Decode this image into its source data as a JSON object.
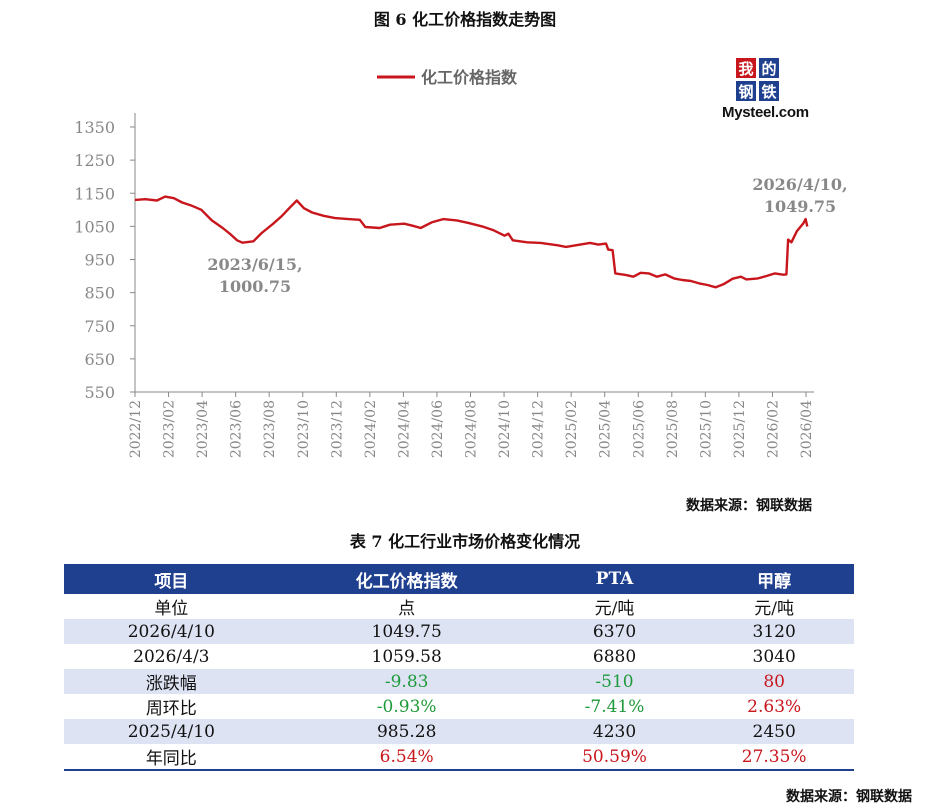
{
  "figure_title": "图 6 化工价格指数走势图",
  "logo": {
    "cells": [
      "我",
      "的",
      "钢",
      "铁"
    ],
    "wordmark": "Mysteel.com"
  },
  "chart_data": {
    "type": "line",
    "title": "",
    "xlabel": "",
    "ylabel": "",
    "ylim": [
      550,
      1350
    ],
    "yticks": [
      1350,
      1250,
      1150,
      1050,
      950,
      850,
      750,
      650,
      550
    ],
    "xlim": [
      "2022-12-01",
      "2026-04-15"
    ],
    "xtick_labels": [
      "2022/12",
      "2023/02",
      "2023/04",
      "2023/06",
      "2023/08",
      "2023/10",
      "2023/12",
      "2024/02",
      "2024/04",
      "2024/06",
      "2024/08",
      "2024/10",
      "2024/12",
      "2025/02",
      "2025/04",
      "2025/06",
      "2025/08",
      "2025/10",
      "2025/12",
      "2026/02",
      "2026/04"
    ],
    "grid": false,
    "legend": "top-center",
    "series": [
      {
        "name": "化工价格指数",
        "color": "#c8161d",
        "points": [
          [
            "2022-12-01",
            1130
          ],
          [
            "2022-12-20",
            1132
          ],
          [
            "2023-01-10",
            1128
          ],
          [
            "2023-01-25",
            1140
          ],
          [
            "2023-02-10",
            1135
          ],
          [
            "2023-02-25",
            1122
          ],
          [
            "2023-03-15",
            1112
          ],
          [
            "2023-04-01",
            1100
          ],
          [
            "2023-04-20",
            1068
          ],
          [
            "2023-05-10",
            1045
          ],
          [
            "2023-05-25",
            1025
          ],
          [
            "2023-06-05",
            1008
          ],
          [
            "2023-06-15",
            1000.75
          ],
          [
            "2023-07-05",
            1005
          ],
          [
            "2023-07-20",
            1030
          ],
          [
            "2023-08-10",
            1058
          ],
          [
            "2023-08-25",
            1080
          ],
          [
            "2023-09-10",
            1108
          ],
          [
            "2023-09-22",
            1128
          ],
          [
            "2023-10-05",
            1105
          ],
          [
            "2023-10-20",
            1092
          ],
          [
            "2023-11-10",
            1082
          ],
          [
            "2023-12-01",
            1075
          ],
          [
            "2023-12-25",
            1072
          ],
          [
            "2024-01-15",
            1070
          ],
          [
            "2024-01-25",
            1048
          ],
          [
            "2024-02-20",
            1045
          ],
          [
            "2024-03-10",
            1055
          ],
          [
            "2024-04-05",
            1058
          ],
          [
            "2024-04-20",
            1052
          ],
          [
            "2024-05-05",
            1045
          ],
          [
            "2024-05-25",
            1062
          ],
          [
            "2024-06-15",
            1072
          ],
          [
            "2024-07-10",
            1068
          ],
          [
            "2024-08-01",
            1060
          ],
          [
            "2024-08-25",
            1050
          ],
          [
            "2024-09-15",
            1038
          ],
          [
            "2024-10-05",
            1022
          ],
          [
            "2024-10-12",
            1028
          ],
          [
            "2024-10-20",
            1008
          ],
          [
            "2024-11-15",
            1002
          ],
          [
            "2024-12-10",
            1000
          ],
          [
            "2025-01-10",
            993
          ],
          [
            "2025-01-25",
            988
          ],
          [
            "2025-02-20",
            995
          ],
          [
            "2025-03-10",
            1000
          ],
          [
            "2025-03-25",
            995
          ],
          [
            "2025-04-08",
            998
          ],
          [
            "2025-04-12",
            980
          ],
          [
            "2025-04-20",
            978
          ],
          [
            "2025-04-25",
            908
          ],
          [
            "2025-05-15",
            903
          ],
          [
            "2025-05-28",
            898
          ],
          [
            "2025-06-10",
            910
          ],
          [
            "2025-06-25",
            908
          ],
          [
            "2025-07-10",
            898
          ],
          [
            "2025-07-25",
            905
          ],
          [
            "2025-08-10",
            893
          ],
          [
            "2025-08-25",
            888
          ],
          [
            "2025-09-10",
            885
          ],
          [
            "2025-09-25",
            878
          ],
          [
            "2025-10-10",
            873
          ],
          [
            "2025-10-25",
            866
          ],
          [
            "2025-11-08",
            875
          ],
          [
            "2025-11-25",
            892
          ],
          [
            "2025-12-10",
            898
          ],
          [
            "2025-12-20",
            890
          ],
          [
            "2026-01-10",
            893
          ],
          [
            "2026-01-25",
            900
          ],
          [
            "2026-02-10",
            908
          ],
          [
            "2026-02-25",
            904
          ],
          [
            "2026-03-03",
            905
          ],
          [
            "2026-03-06",
            1010
          ],
          [
            "2026-03-12",
            1002
          ],
          [
            "2026-03-22",
            1035
          ],
          [
            "2026-04-03",
            1059.58
          ],
          [
            "2026-04-07",
            1072
          ],
          [
            "2026-04-10",
            1049.75
          ]
        ]
      }
    ],
    "annotations": [
      {
        "date": "2023-06-15",
        "lines": [
          "2023/6/15,",
          "1000.75"
        ]
      },
      {
        "date": "2026-04-10",
        "lines": [
          "2026/4/10,",
          "1049.75"
        ]
      }
    ]
  },
  "source_label": "数据来源：钢联数据",
  "table_title": "表 7 化工行业市场价格变化情况",
  "table": {
    "headers": [
      "项目",
      "化工价格指数",
      "PTA",
      "甲醇"
    ],
    "rows": [
      {
        "shade": false,
        "cells": [
          {
            "t": "单位"
          },
          {
            "t": "点"
          },
          {
            "t": "元/吨"
          },
          {
            "t": "元/吨"
          }
        ]
      },
      {
        "shade": true,
        "cells": [
          {
            "t": "2026/4/10"
          },
          {
            "t": "1049.75"
          },
          {
            "t": "6370"
          },
          {
            "t": "3120"
          }
        ]
      },
      {
        "shade": false,
        "cells": [
          {
            "t": "2026/4/3"
          },
          {
            "t": "1059.58"
          },
          {
            "t": "6880"
          },
          {
            "t": "3040"
          }
        ]
      },
      {
        "shade": true,
        "cells": [
          {
            "t": "涨跌幅"
          },
          {
            "t": "-9.83",
            "c": "neg"
          },
          {
            "t": "-510",
            "c": "neg"
          },
          {
            "t": "80",
            "c": "pos"
          }
        ]
      },
      {
        "shade": false,
        "cells": [
          {
            "t": "周环比"
          },
          {
            "t": "-0.93%",
            "c": "neg"
          },
          {
            "t": "-7.41%",
            "c": "neg"
          },
          {
            "t": "2.63%",
            "c": "pos"
          }
        ]
      },
      {
        "shade": true,
        "cells": [
          {
            "t": "2025/4/10"
          },
          {
            "t": "985.28"
          },
          {
            "t": "4230"
          },
          {
            "t": "2450"
          }
        ]
      },
      {
        "shade": false,
        "cells": [
          {
            "t": "年同比"
          },
          {
            "t": "6.54%",
            "c": "pos"
          },
          {
            "t": "50.59%",
            "c": "pos"
          },
          {
            "t": "27.35%",
            "c": "pos"
          }
        ]
      }
    ]
  },
  "source_label_2": "数据来源：钢联数据"
}
